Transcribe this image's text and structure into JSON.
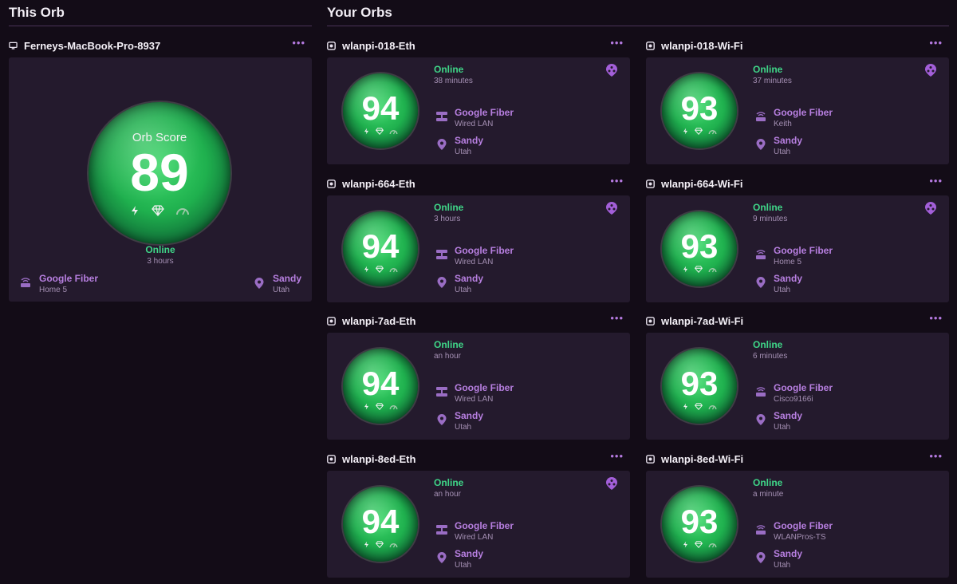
{
  "sections": {
    "this_orb": "This Orb",
    "your_orbs": "Your Orbs"
  },
  "this_orb": {
    "name": "Ferneys-MacBook-Pro-8937",
    "menu": "•••",
    "orb_label": "Orb Score",
    "score": "89",
    "status": "Online",
    "since": "3 hours",
    "network": "Google Fiber",
    "network_sub": "Home 5",
    "location": "Sandy",
    "location_sub": "Utah"
  },
  "orbs": [
    {
      "name": "wlanpi-018-Eth",
      "score": "94",
      "status": "Online",
      "since": "38 minutes",
      "network": "Google Fiber",
      "network_sub": "Wired LAN",
      "location": "Sandy",
      "location_sub": "Utah",
      "badge": true,
      "conn": "wired"
    },
    {
      "name": "wlanpi-018-Wi-Fi",
      "score": "93",
      "status": "Online",
      "since": "37 minutes",
      "network": "Google Fiber",
      "network_sub": "Keith",
      "location": "Sandy",
      "location_sub": "Utah",
      "badge": true,
      "conn": "wifi"
    },
    {
      "name": "wlanpi-664-Eth",
      "score": "94",
      "status": "Online",
      "since": "3 hours",
      "network": "Google Fiber",
      "network_sub": "Wired LAN",
      "location": "Sandy",
      "location_sub": "Utah",
      "badge": true,
      "conn": "wired"
    },
    {
      "name": "wlanpi-664-Wi-Fi",
      "score": "93",
      "status": "Online",
      "since": "9 minutes",
      "network": "Google Fiber",
      "network_sub": "Home 5",
      "location": "Sandy",
      "location_sub": "Utah",
      "badge": true,
      "conn": "wifi"
    },
    {
      "name": "wlanpi-7ad-Eth",
      "score": "94",
      "status": "Online",
      "since": "an hour",
      "network": "Google Fiber",
      "network_sub": "Wired LAN",
      "location": "Sandy",
      "location_sub": "Utah",
      "badge": false,
      "conn": "wired"
    },
    {
      "name": "wlanpi-7ad-Wi-Fi",
      "score": "93",
      "status": "Online",
      "since": "6 minutes",
      "network": "Google Fiber",
      "network_sub": "Cisco9166i",
      "location": "Sandy",
      "location_sub": "Utah",
      "badge": false,
      "conn": "wifi"
    },
    {
      "name": "wlanpi-8ed-Eth",
      "score": "94",
      "status": "Online",
      "since": "an hour",
      "network": "Google Fiber",
      "network_sub": "Wired LAN",
      "location": "Sandy",
      "location_sub": "Utah",
      "badge": true,
      "conn": "wired"
    },
    {
      "name": "wlanpi-8ed-Wi-Fi",
      "score": "93",
      "status": "Online",
      "since": "a minute",
      "network": "Google Fiber",
      "network_sub": "WLANPros-TS",
      "location": "Sandy",
      "location_sub": "Utah",
      "badge": false,
      "conn": "wifi"
    }
  ],
  "menu_glyph": "•••",
  "colors": {
    "background": "#130c17",
    "card": "#241a2d",
    "accent": "#b77fe0",
    "online": "#3fd688",
    "orb_green": "#1fb04e"
  }
}
